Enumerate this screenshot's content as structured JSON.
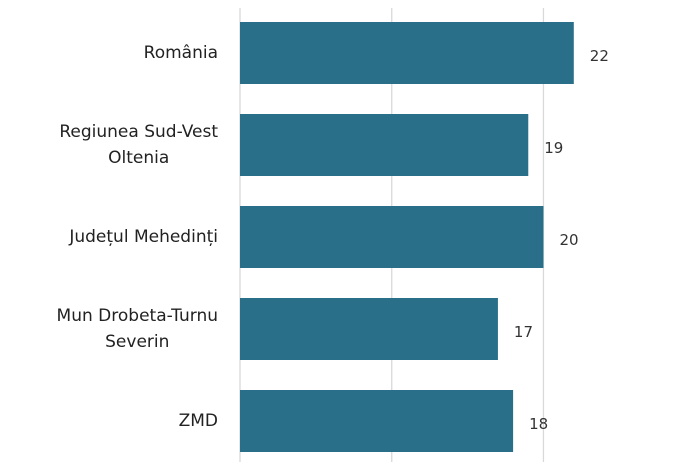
{
  "chart_data": {
    "type": "barh",
    "categories": [
      "România",
      "Regiunea Sud-Vest\nOltenia",
      "Județul Mehedinți",
      "Mun Drobeta-Turnu\nSeverin",
      "ZMD"
    ],
    "values": [
      22,
      19,
      20,
      17,
      18
    ],
    "color": "#2a6f8a",
    "xlim": [
      0,
      29
    ],
    "xticks": [
      0,
      10,
      20
    ],
    "grid": true
  }
}
